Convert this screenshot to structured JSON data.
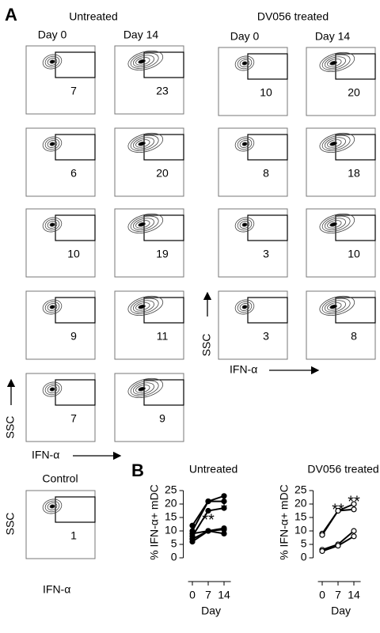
{
  "panel_a": {
    "label": "A",
    "y_axis": "SSC",
    "x_axis": "IFN-α",
    "groups": [
      {
        "title": "Untreated",
        "columns": [
          "Day 0",
          "Day 14"
        ],
        "gates": [
          [
            7,
            23
          ],
          [
            6,
            20
          ],
          [
            10,
            19
          ],
          [
            9,
            11
          ],
          [
            7,
            9
          ]
        ]
      },
      {
        "title": "DV056 treated",
        "columns": [
          "Day 0",
          "Day 14"
        ],
        "gates": [
          [
            10,
            20
          ],
          [
            8,
            18
          ],
          [
            3,
            10
          ],
          [
            3,
            8
          ]
        ]
      }
    ],
    "control": {
      "title": "Control",
      "gate": 1
    }
  },
  "panel_b": {
    "label": "B"
  },
  "chart_data": [
    {
      "type": "line",
      "title": "Untreated",
      "x_label": "Day",
      "y_label": "% IFN-α+ mDC",
      "x": [
        0,
        7,
        14
      ],
      "xlim": [
        -4,
        17
      ],
      "xticks": [
        0,
        7,
        14
      ],
      "ylim": [
        0,
        25
      ],
      "yticks": [
        0,
        5,
        10,
        15,
        20,
        25
      ],
      "marker_fill": true,
      "annotations": [
        "**",
        "*"
      ],
      "series": [
        {
          "color": "#000000",
          "values": [
            12,
            21,
            23
          ]
        },
        {
          "color": "#000000",
          "values": [
            10,
            21,
            21
          ]
        },
        {
          "color": "#000000",
          "values": [
            8,
            17.5,
            18.5
          ]
        },
        {
          "color": "#000000",
          "values": [
            7,
            10,
            9
          ]
        },
        {
          "color": "#000000",
          "values": [
            9,
            10,
            10.5
          ]
        },
        {
          "color": "#000000",
          "values": [
            6,
            10,
            11
          ]
        }
      ]
    },
    {
      "type": "line",
      "title": "DV056 treated",
      "x_label": "Day",
      "y_label": "% IFN-α+ mDC",
      "x": [
        0,
        7,
        14
      ],
      "xlim": [
        -4,
        17
      ],
      "xticks": [
        0,
        7,
        14
      ],
      "ylim": [
        0,
        25
      ],
      "yticks": [
        0,
        5,
        10,
        15,
        20,
        25
      ],
      "marker_fill": false,
      "annotations": [
        "**",
        "**"
      ],
      "series": [
        {
          "color": "#000000",
          "values": [
            9,
            17.5,
            20
          ]
        },
        {
          "color": "#000000",
          "values": [
            8.5,
            17.5,
            18
          ]
        },
        {
          "color": "#000000",
          "values": [
            3,
            5,
            10
          ]
        },
        {
          "color": "#000000",
          "values": [
            2.5,
            4.5,
            8
          ]
        }
      ]
    }
  ]
}
